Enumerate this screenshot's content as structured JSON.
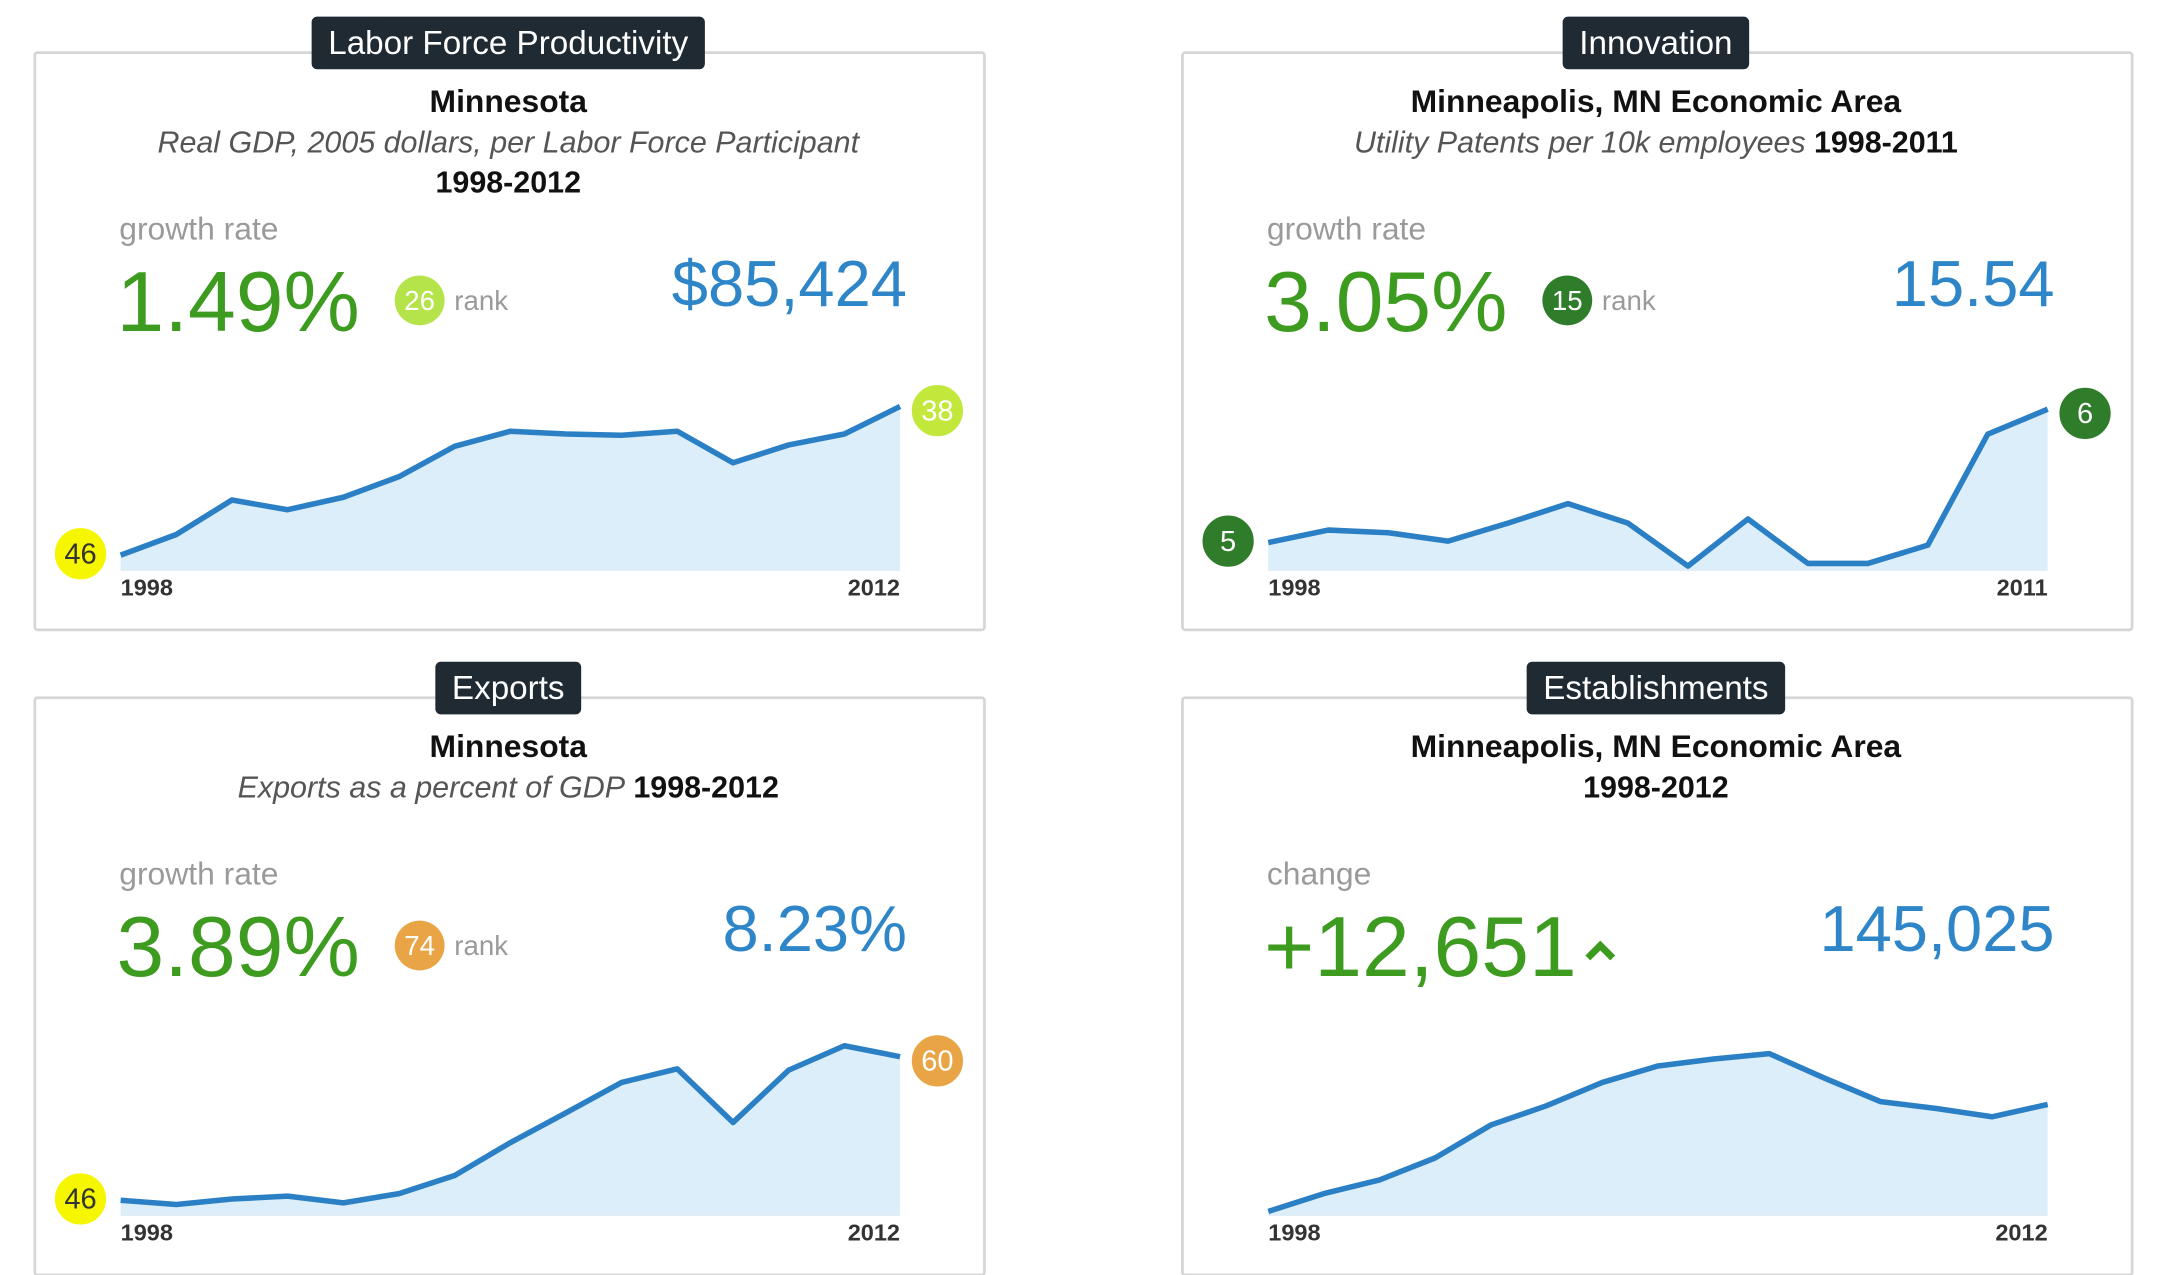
{
  "panels": [
    {
      "tab": "Labor Force Productivity",
      "region": "Minnesota",
      "description": "Real GDP, 2005 dollars, per Labor Force Participant",
      "period": "1998-2012",
      "metric_label": "growth rate",
      "metric_value": "1.49%",
      "rank": {
        "value": 26,
        "color": "#b5e34a"
      },
      "current_value": "$85,424",
      "chart": {
        "type": "area",
        "x": [
          1998,
          1999,
          2000,
          2001,
          2002,
          2003,
          2004,
          2005,
          2006,
          2007,
          2008,
          2009,
          2010,
          2011,
          2012
        ],
        "values": [
          69440,
          71660,
          75360,
          74320,
          75660,
          77880,
          81130,
          82760,
          82460,
          82320,
          82760,
          79360,
          81280,
          82460,
          85424
        ],
        "xlim": [
          1998,
          2012
        ],
        "xticks": [
          1998,
          2012
        ],
        "ylim": [
          67800,
          87000
        ],
        "color": "#2b80c5",
        "fill": "#dbeef9",
        "start_rank": {
          "value": 46,
          "color": "#f6f600"
        },
        "end_rank": {
          "value": 38,
          "color": "#c3e83c"
        }
      }
    },
    {
      "tab": "Innovation",
      "region": "Minneapolis, MN Economic Area",
      "description": "Utility Patents per 10k employees",
      "period": "1998-2011",
      "metric_label": "growth rate",
      "metric_value": "3.05%",
      "rank": {
        "value": 15,
        "color": "#2f7d2a"
      },
      "current_value": "15.54",
      "chart": {
        "type": "area",
        "x": [
          1998,
          1999,
          2000,
          2001,
          2002,
          2003,
          2004,
          2005,
          2006,
          2007,
          2008,
          2009,
          2010,
          2011
        ],
        "values": [
          10.51,
          10.98,
          10.88,
          10.56,
          11.24,
          11.98,
          11.24,
          9.62,
          11.4,
          9.72,
          9.72,
          10.41,
          14.6,
          15.54
        ],
        "xlim": [
          1998,
          2011
        ],
        "xticks": [
          1998,
          2011
        ],
        "ylim": [
          9.46,
          16.2
        ],
        "color": "#2b80c5",
        "fill": "#dbeef9",
        "start_rank": {
          "value": 5,
          "color": "#2f7d2a"
        },
        "end_rank": {
          "value": 6,
          "color": "#2f7d2a"
        }
      }
    },
    {
      "tab": "Exports",
      "region": "Minnesota",
      "description": "Exports as a percent of GDP",
      "period": "1998-2012",
      "metric_label": "growth rate",
      "metric_value": "3.89%",
      "rank": {
        "value": 74,
        "color": "#e9a545"
      },
      "current_value": "8.23%",
      "chart": {
        "type": "area",
        "x": [
          1998,
          1999,
          2000,
          2001,
          2002,
          2003,
          2004,
          2005,
          2006,
          2007,
          2008,
          2009,
          2010,
          2011,
          2012
        ],
        "values": [
          4.82,
          4.72,
          4.85,
          4.92,
          4.76,
          4.98,
          5.41,
          6.19,
          6.9,
          7.62,
          7.94,
          6.67,
          7.91,
          8.49,
          8.23
        ],
        "xlim": [
          1998,
          2012
        ],
        "xticks": [
          1998,
          2012
        ],
        "ylim": [
          4.46,
          8.7
        ],
        "color": "#2b80c5",
        "fill": "#dbeef9",
        "start_rank": {
          "value": 46,
          "color": "#f6f600"
        },
        "end_rank": {
          "value": 60,
          "color": "#e9a545"
        }
      }
    },
    {
      "tab": "Establishments",
      "region": "Minneapolis, MN Economic Area",
      "period": "1998-2012",
      "metric_label": "change",
      "metric_value": "+12,651",
      "current_value": "145,025",
      "chart": {
        "type": "area",
        "x": [
          1998,
          1999,
          2000,
          2001,
          2002,
          2003,
          2004,
          2005,
          2006,
          2007,
          2008,
          2009,
          2010,
          2011,
          2012
        ],
        "values": [
          132374,
          134483,
          136105,
          138700,
          142593,
          144863,
          147621,
          149567,
          150378,
          151027,
          148107,
          145350,
          144539,
          143565,
          145025
        ],
        "xlim": [
          1998,
          2012
        ],
        "xticks": [
          1998,
          2012
        ],
        "ylim": [
          131900,
          153000
        ],
        "color": "#2b80c5",
        "fill": "#dbeef9"
      }
    }
  ]
}
